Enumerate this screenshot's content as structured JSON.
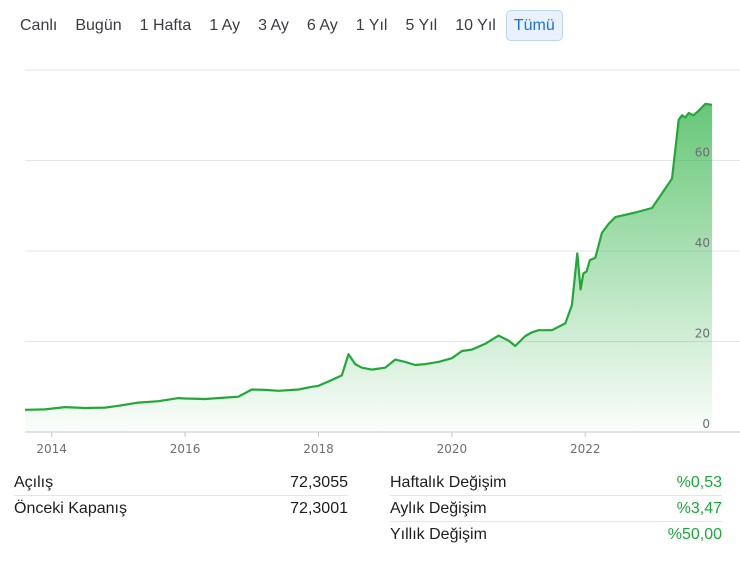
{
  "tabs": [
    "Canlı",
    "Bugün",
    "1 Hafta",
    "1 Ay",
    "3 Ay",
    "6 Ay",
    "1 Yıl",
    "5 Yıl",
    "10 Yıl",
    "Tümü"
  ],
  "active_tab": "Tümü",
  "colors": {
    "line": "#22a838",
    "fill": "#34b44a",
    "positive": "#1aa83a",
    "accent": "#1a73d6"
  },
  "stats_left": [
    {
      "label": "Açılış",
      "value": "72,3055"
    },
    {
      "label": "Önceki Kapanış",
      "value": "72,3001"
    }
  ],
  "stats_right": [
    {
      "label": "Haftalık Değişim",
      "value": "%0,53"
    },
    {
      "label": "Aylık Değişim",
      "value": "%3,47"
    },
    {
      "label": "Yıllık Değişim",
      "value": "%50,00"
    }
  ],
  "chart_data": {
    "type": "area",
    "title": "",
    "xlabel": "",
    "ylabel": "",
    "x_ticks": [
      "2014",
      "2016",
      "2018",
      "2020",
      "2022"
    ],
    "y_ticks": [
      "0",
      "20",
      "40",
      "60"
    ],
    "xlim": [
      2013.6,
      2023.9
    ],
    "ylim": [
      0,
      80
    ],
    "grid": true,
    "series": [
      {
        "x": [
          2013.6,
          2013.9,
          2014.2,
          2014.5,
          2014.8,
          2015.0,
          2015.3,
          2015.6,
          2015.9,
          2016.0,
          2016.3,
          2016.6,
          2016.8,
          2017.0,
          2017.2,
          2017.4,
          2017.7,
          2017.9,
          2018.0,
          2018.2,
          2018.35,
          2018.45,
          2018.55,
          2018.65,
          2018.8,
          2019.0,
          2019.15,
          2019.3,
          2019.45,
          2019.6,
          2019.8,
          2020.0,
          2020.15,
          2020.3,
          2020.5,
          2020.7,
          2020.85,
          2020.95,
          2021.1,
          2021.2,
          2021.3,
          2021.5,
          2021.7,
          2021.8,
          2021.88,
          2021.93,
          2021.97,
          2022.02,
          2022.07,
          2022.15,
          2022.25,
          2022.35,
          2022.45,
          2022.6,
          2022.75,
          2023.0,
          2023.3,
          2023.4,
          2023.45,
          2023.5,
          2023.55,
          2023.62,
          2023.7,
          2023.8,
          2023.9
        ],
        "y": [
          4.9,
          5.0,
          5.5,
          5.3,
          5.4,
          5.8,
          6.5,
          6.8,
          7.5,
          7.4,
          7.3,
          7.6,
          7.8,
          9.4,
          9.3,
          9.1,
          9.4,
          10.0,
          10.2,
          11.5,
          12.5,
          17.2,
          15.0,
          14.2,
          13.8,
          14.2,
          16.0,
          15.5,
          14.8,
          15.0,
          15.5,
          16.3,
          17.9,
          18.2,
          19.5,
          21.3,
          20.2,
          19.0,
          21.2,
          22.0,
          22.5,
          22.5,
          24.0,
          28.0,
          39.5,
          31.5,
          35.0,
          35.5,
          38.0,
          38.5,
          44.0,
          46.0,
          47.5,
          48.0,
          48.5,
          49.5,
          56.0,
          69.0,
          70.0,
          69.5,
          70.5,
          70.0,
          71.0,
          72.5,
          72.3
        ]
      }
    ]
  }
}
